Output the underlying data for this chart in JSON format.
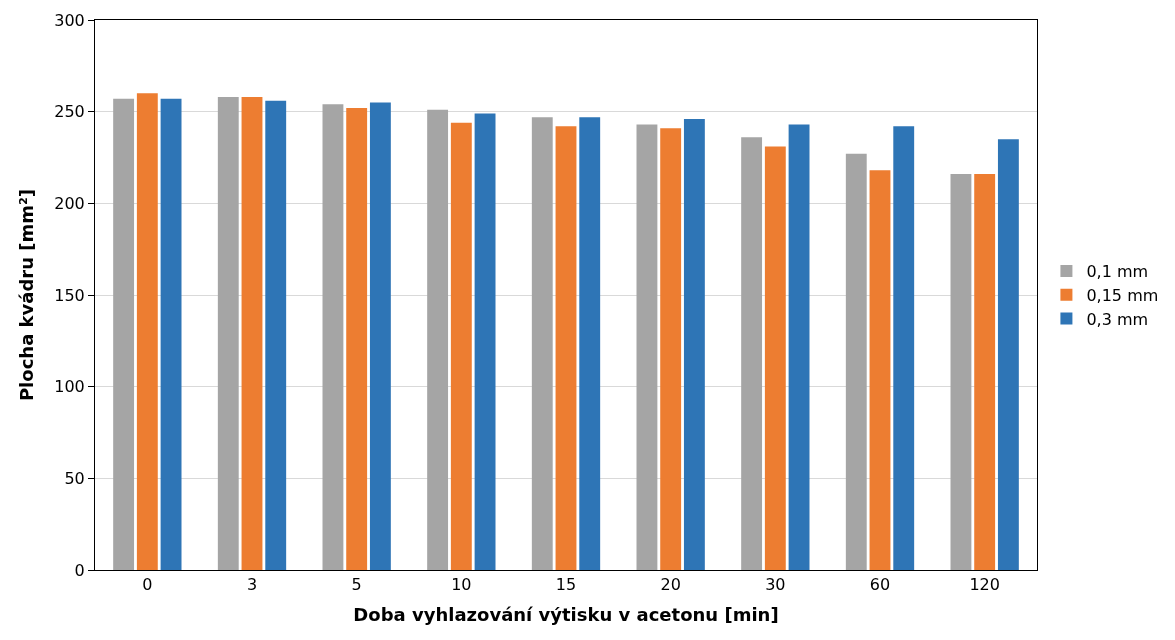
{
  "chart_data": {
    "type": "bar",
    "xlabel": "Doba vyhlazování výtisku v acetonu [min]",
    "ylabel": "Plocha kvádru [mm²]",
    "categories": [
      "0",
      "3",
      "5",
      "10",
      "15",
      "20",
      "30",
      "60",
      "120"
    ],
    "series": [
      {
        "name": "0,1 mm",
        "color": "#a5a5a5",
        "values": [
          257,
          258,
          254,
          251,
          247,
          243,
          236,
          227,
          216
        ]
      },
      {
        "name": "0,15 mm",
        "color": "#ed7d31",
        "values": [
          260,
          258,
          252,
          244,
          242,
          241,
          231,
          218,
          216
        ]
      },
      {
        "name": "0,3 mm",
        "color": "#2e75b6",
        "values": [
          257,
          256,
          255,
          249,
          247,
          246,
          243,
          242,
          235
        ]
      }
    ],
    "ylim": [
      0,
      300
    ],
    "yticks": [
      0,
      50,
      100,
      150,
      200,
      250,
      300
    ],
    "grid": "y",
    "legend": "right"
  }
}
